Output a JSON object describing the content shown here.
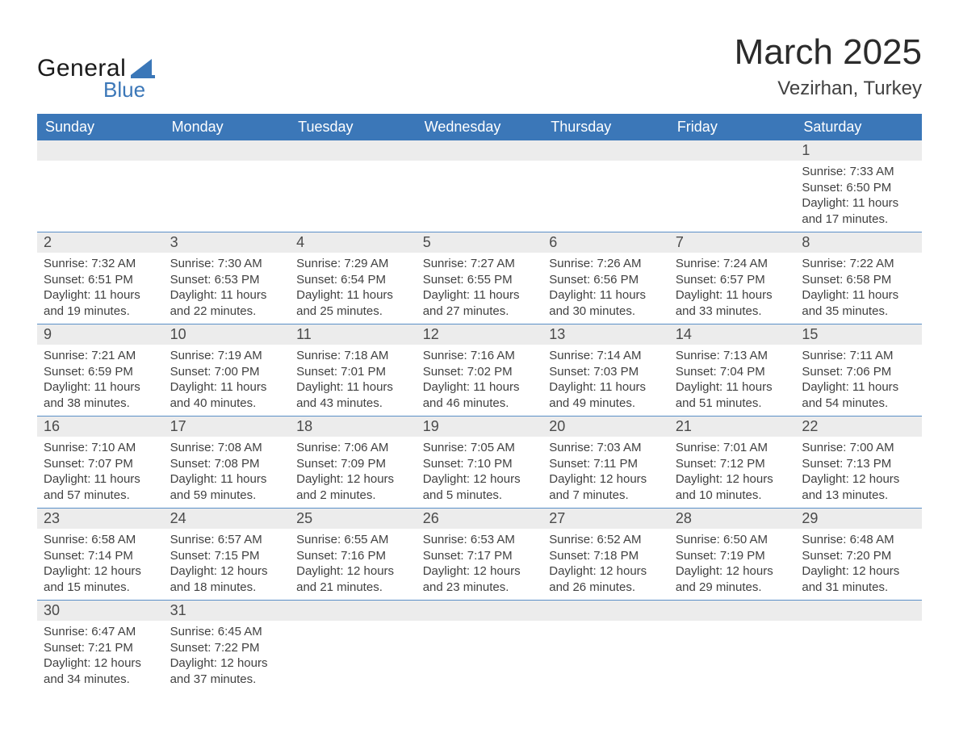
{
  "brand": {
    "general": "General",
    "blue": "Blue"
  },
  "colors": {
    "blue": "#3b77b8",
    "row_border": "#5a8fc7",
    "gray_bg": "#ececec",
    "text": "#414141",
    "white": "#ffffff"
  },
  "title": "March 2025",
  "location": "Vezirhan, Turkey",
  "weekday_headers": [
    "Sunday",
    "Monday",
    "Tuesday",
    "Wednesday",
    "Thursday",
    "Friday",
    "Saturday"
  ],
  "labels": {
    "sunrise": "Sunrise:",
    "sunset": "Sunset:",
    "daylight": "Daylight:"
  },
  "first_weekday_index": 6,
  "days": [
    {
      "n": 1,
      "sunrise": "7:33 AM",
      "sunset": "6:50 PM",
      "daylight": "11 hours and 17 minutes."
    },
    {
      "n": 2,
      "sunrise": "7:32 AM",
      "sunset": "6:51 PM",
      "daylight": "11 hours and 19 minutes."
    },
    {
      "n": 3,
      "sunrise": "7:30 AM",
      "sunset": "6:53 PM",
      "daylight": "11 hours and 22 minutes."
    },
    {
      "n": 4,
      "sunrise": "7:29 AM",
      "sunset": "6:54 PM",
      "daylight": "11 hours and 25 minutes."
    },
    {
      "n": 5,
      "sunrise": "7:27 AM",
      "sunset": "6:55 PM",
      "daylight": "11 hours and 27 minutes."
    },
    {
      "n": 6,
      "sunrise": "7:26 AM",
      "sunset": "6:56 PM",
      "daylight": "11 hours and 30 minutes."
    },
    {
      "n": 7,
      "sunrise": "7:24 AM",
      "sunset": "6:57 PM",
      "daylight": "11 hours and 33 minutes."
    },
    {
      "n": 8,
      "sunrise": "7:22 AM",
      "sunset": "6:58 PM",
      "daylight": "11 hours and 35 minutes."
    },
    {
      "n": 9,
      "sunrise": "7:21 AM",
      "sunset": "6:59 PM",
      "daylight": "11 hours and 38 minutes."
    },
    {
      "n": 10,
      "sunrise": "7:19 AM",
      "sunset": "7:00 PM",
      "daylight": "11 hours and 40 minutes."
    },
    {
      "n": 11,
      "sunrise": "7:18 AM",
      "sunset": "7:01 PM",
      "daylight": "11 hours and 43 minutes."
    },
    {
      "n": 12,
      "sunrise": "7:16 AM",
      "sunset": "7:02 PM",
      "daylight": "11 hours and 46 minutes."
    },
    {
      "n": 13,
      "sunrise": "7:14 AM",
      "sunset": "7:03 PM",
      "daylight": "11 hours and 49 minutes."
    },
    {
      "n": 14,
      "sunrise": "7:13 AM",
      "sunset": "7:04 PM",
      "daylight": "11 hours and 51 minutes."
    },
    {
      "n": 15,
      "sunrise": "7:11 AM",
      "sunset": "7:06 PM",
      "daylight": "11 hours and 54 minutes."
    },
    {
      "n": 16,
      "sunrise": "7:10 AM",
      "sunset": "7:07 PM",
      "daylight": "11 hours and 57 minutes."
    },
    {
      "n": 17,
      "sunrise": "7:08 AM",
      "sunset": "7:08 PM",
      "daylight": "11 hours and 59 minutes."
    },
    {
      "n": 18,
      "sunrise": "7:06 AM",
      "sunset": "7:09 PM",
      "daylight": "12 hours and 2 minutes."
    },
    {
      "n": 19,
      "sunrise": "7:05 AM",
      "sunset": "7:10 PM",
      "daylight": "12 hours and 5 minutes."
    },
    {
      "n": 20,
      "sunrise": "7:03 AM",
      "sunset": "7:11 PM",
      "daylight": "12 hours and 7 minutes."
    },
    {
      "n": 21,
      "sunrise": "7:01 AM",
      "sunset": "7:12 PM",
      "daylight": "12 hours and 10 minutes."
    },
    {
      "n": 22,
      "sunrise": "7:00 AM",
      "sunset": "7:13 PM",
      "daylight": "12 hours and 13 minutes."
    },
    {
      "n": 23,
      "sunrise": "6:58 AM",
      "sunset": "7:14 PM",
      "daylight": "12 hours and 15 minutes."
    },
    {
      "n": 24,
      "sunrise": "6:57 AM",
      "sunset": "7:15 PM",
      "daylight": "12 hours and 18 minutes."
    },
    {
      "n": 25,
      "sunrise": "6:55 AM",
      "sunset": "7:16 PM",
      "daylight": "12 hours and 21 minutes."
    },
    {
      "n": 26,
      "sunrise": "6:53 AM",
      "sunset": "7:17 PM",
      "daylight": "12 hours and 23 minutes."
    },
    {
      "n": 27,
      "sunrise": "6:52 AM",
      "sunset": "7:18 PM",
      "daylight": "12 hours and 26 minutes."
    },
    {
      "n": 28,
      "sunrise": "6:50 AM",
      "sunset": "7:19 PM",
      "daylight": "12 hours and 29 minutes."
    },
    {
      "n": 29,
      "sunrise": "6:48 AM",
      "sunset": "7:20 PM",
      "daylight": "12 hours and 31 minutes."
    },
    {
      "n": 30,
      "sunrise": "6:47 AM",
      "sunset": "7:21 PM",
      "daylight": "12 hours and 34 minutes."
    },
    {
      "n": 31,
      "sunrise": "6:45 AM",
      "sunset": "7:22 PM",
      "daylight": "12 hours and 37 minutes."
    }
  ]
}
